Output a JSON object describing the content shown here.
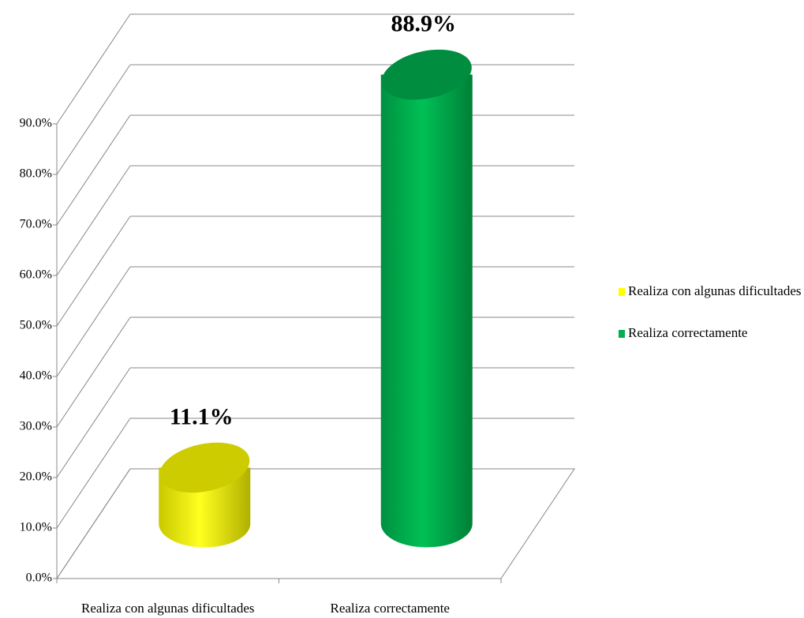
{
  "chart_data": {
    "type": "bar3d",
    "categories": [
      "Realiza con algunas dificultades",
      "Realiza correctamente"
    ],
    "values": [
      11.1,
      88.9
    ],
    "value_labels": [
      "11.1%",
      "88.9%"
    ],
    "colors": [
      "#ffff00",
      "#00b050"
    ],
    "ylim": [
      0,
      90
    ],
    "yticks": [
      {
        "value": 0,
        "label": "0.0%"
      },
      {
        "value": 10,
        "label": "10.0%"
      },
      {
        "value": 20,
        "label": "20.0%"
      },
      {
        "value": 30,
        "label": "30.0%"
      },
      {
        "value": 40,
        "label": "40.0%"
      },
      {
        "value": 50,
        "label": "50.0%"
      },
      {
        "value": 60,
        "label": "60.0%"
      },
      {
        "value": 70,
        "label": "70.0%"
      },
      {
        "value": 80,
        "label": "80.0%"
      },
      {
        "value": 90,
        "label": "90.0%"
      }
    ],
    "grid": true,
    "legend": "right"
  }
}
